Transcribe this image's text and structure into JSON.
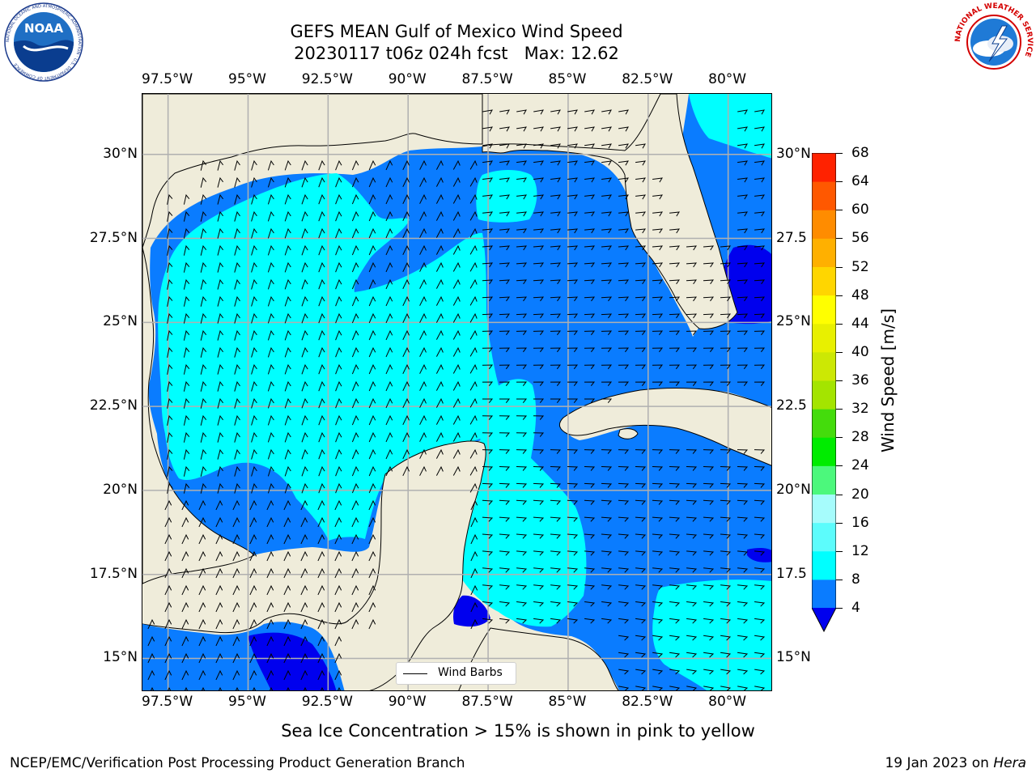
{
  "header": {
    "title_line1": "GEFS MEAN Gulf of Mexico Wind Speed",
    "title_line2": "20230117 t06z 024h fcst   Max: 12.62",
    "noaa_logo_text": "NOAA",
    "noaa_ring_text": "NATIONAL OCEANIC AND ATMOSPHERIC ADMINISTRATION · U.S. DEPARTMENT OF COMMERCE",
    "nws_ring_text": "NATIONAL WEATHER SERVICE"
  },
  "map": {
    "extent": {
      "lon_min": -98.3,
      "lon_max": -78.6,
      "lat_min": 14.0,
      "lat_max": 31.8
    },
    "lon_labels": [
      "97.5°W",
      "95°W",
      "92.5°W",
      "90°W",
      "87.5°W",
      "85°W",
      "82.5°W",
      "80°W"
    ],
    "lon_values": [
      -97.5,
      -95,
      -92.5,
      -90,
      -87.5,
      -85,
      -82.5,
      -80
    ],
    "lat_labels": [
      "15°N",
      "17.5°N",
      "20°N",
      "22.5°N",
      "25°N",
      "27.5°N",
      "30°N"
    ],
    "lat_values": [
      15,
      17.5,
      20,
      22.5,
      25,
      27.5,
      30
    ],
    "lat_labels_right": [
      "15°N",
      "17.5",
      "20°N",
      "22.5",
      "25°N",
      "27.5",
      "30°N"
    ],
    "gridlines": true,
    "colors": {
      "land": "#efecda",
      "water_4_8": "#0a7cff",
      "water_0_4": "#0000ee",
      "water_8_12": "#00ffff",
      "coast": "#000000",
      "grid": "#b0b0b0"
    },
    "legend_label": "Wind Barbs",
    "legend_placement": "bottom-center"
  },
  "colorbar": {
    "label": "Wind Speed [m/s]",
    "ticks": [
      "4",
      "8",
      "12",
      "16",
      "20",
      "24",
      "28",
      "32",
      "36",
      "40",
      "44",
      "48",
      "52",
      "56",
      "60",
      "64",
      "68"
    ],
    "levels": [
      4,
      8,
      12,
      16,
      20,
      24,
      28,
      32,
      36,
      40,
      44,
      48,
      52,
      56,
      60,
      64,
      68
    ],
    "colors": [
      "#0a7cff",
      "#00ffff",
      "#5cfcfc",
      "#a6fcfc",
      "#4cf87c",
      "#00ec00",
      "#44dc0c",
      "#a4e400",
      "#cce804",
      "#e8f000",
      "#ffff00",
      "#ffd600",
      "#ffb000",
      "#ff8c00",
      "#ff5800",
      "#ff2200"
    ],
    "extend_low_color": "#0000ee"
  },
  "footer": {
    "note": "Sea Ice Concentration > 15% is shown in pink to yellow",
    "left": "NCEP/EMC/Verification Post Processing Product Generation Branch",
    "right_prefix": "19 Jan 2023 on ",
    "right_machine": "Hera"
  }
}
